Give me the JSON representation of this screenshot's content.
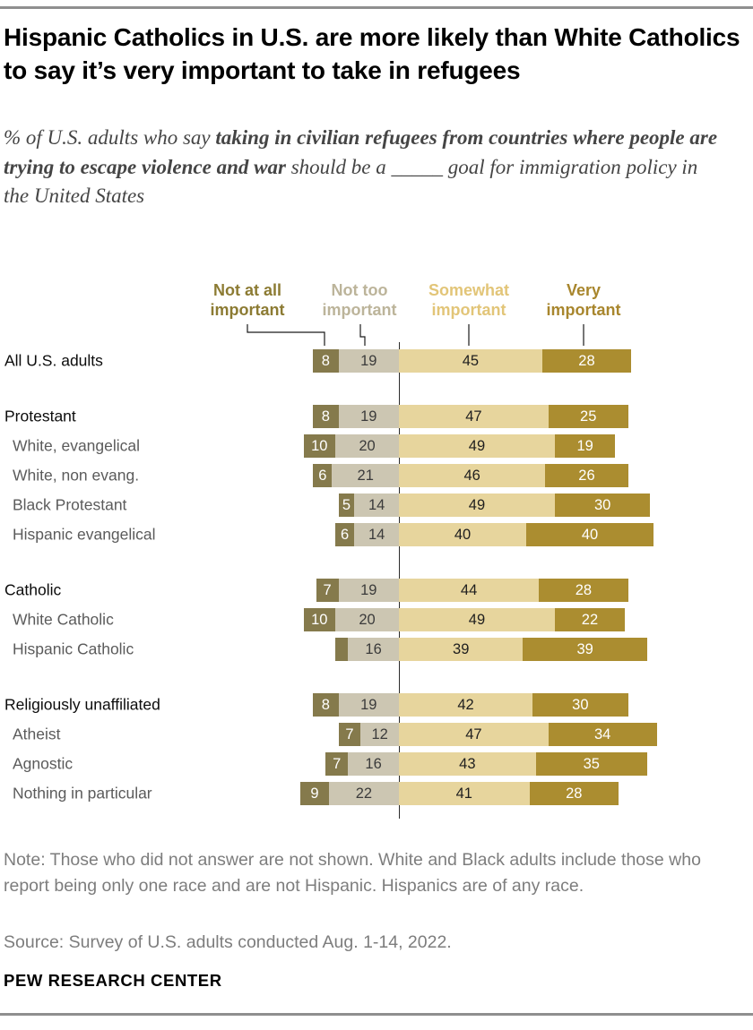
{
  "header": {
    "title": "Hispanic Catholics in U.S. are more likely than White Catholics to say it’s very important to take in refugees",
    "subtitle_prefix": "% of U.S. adults who say ",
    "subtitle_bold": "taking in civilian refugees from countries where people are trying to escape violence and war",
    "subtitle_suffix": " should be a _____ goal for immigration policy in the United States"
  },
  "chart_data": {
    "type": "bar",
    "variant": "diverging-stacked-horizontal",
    "legend": [
      {
        "label": "Not at all important",
        "color": "#857A4C",
        "text_color": "#8C7B33"
      },
      {
        "label": "Not too important",
        "color": "#CCC6B2",
        "text_color": "#BCB49A"
      },
      {
        "label": "Somewhat important",
        "color": "#E7D59D",
        "text_color": "#E2C578"
      },
      {
        "label": "Very important",
        "color": "#AB8D30",
        "text_color": "#A8862D"
      }
    ],
    "anchor_note": "bars anchored between 'Not too important' and 'Somewhat important'",
    "rows": [
      {
        "label": "All U.S. adults",
        "group": true,
        "values": [
          8,
          19,
          45,
          28
        ]
      },
      {
        "label": "Protestant",
        "group": true,
        "section_start": true,
        "values": [
          8,
          19,
          47,
          25
        ]
      },
      {
        "label": "White, evangelical",
        "values": [
          10,
          20,
          49,
          19
        ]
      },
      {
        "label": "White, non evang.",
        "values": [
          6,
          21,
          46,
          26
        ]
      },
      {
        "label": "Black Protestant",
        "values": [
          5,
          14,
          49,
          30
        ]
      },
      {
        "label": "Hispanic evangelical",
        "values": [
          6,
          14,
          40,
          40
        ]
      },
      {
        "label": "Catholic",
        "group": true,
        "section_start": true,
        "values": [
          7,
          19,
          44,
          28
        ]
      },
      {
        "label": "White Catholic",
        "values": [
          10,
          20,
          49,
          22
        ]
      },
      {
        "label": "Hispanic Catholic",
        "values": [
          4,
          16,
          39,
          39
        ],
        "unlabeled_segments": [
          0
        ]
      },
      {
        "label": "Religiously unaffiliated",
        "group": true,
        "section_start": true,
        "values": [
          8,
          19,
          42,
          30
        ]
      },
      {
        "label": "Atheist",
        "values": [
          7,
          12,
          47,
          34
        ]
      },
      {
        "label": "Agnostic",
        "values": [
          7,
          16,
          43,
          35
        ]
      },
      {
        "label": "Nothing in particular",
        "values": [
          9,
          22,
          41,
          28
        ]
      }
    ]
  },
  "footer": {
    "note": "Note: Those who did not answer are not shown. White and Black adults include those who report being only one race and are not Hispanic. Hispanics are of any race.",
    "source": "Source: Survey of U.S. adults conducted Aug. 1-14, 2022.",
    "brand": "PEW RESEARCH CENTER"
  }
}
